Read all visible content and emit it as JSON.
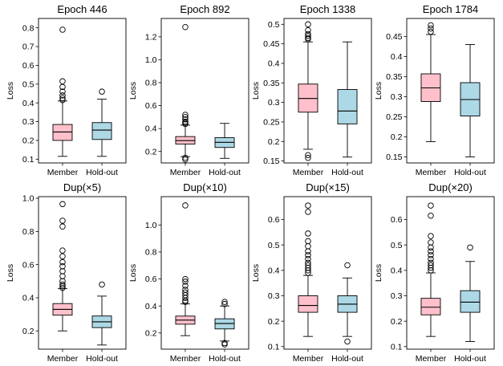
{
  "colors": {
    "member": "#ffc0cb",
    "holdout": "#add8e6",
    "axis": "#000000",
    "outlier": "#000000"
  },
  "chart_data": [
    {
      "type": "box",
      "title": "Epoch 446",
      "ylabel": "Loss",
      "categories": [
        "Member",
        "Hold-out"
      ],
      "ylim": [
        0.08,
        0.85
      ],
      "yticks": [
        0.1,
        0.2,
        0.3,
        0.4,
        0.5,
        0.6,
        0.7,
        0.8
      ],
      "boxes": [
        {
          "name": "Member",
          "whislo": 0.115,
          "q1": 0.2,
          "med": 0.245,
          "q3": 0.285,
          "whishi": 0.41,
          "fliers": [
            0.79,
            0.515,
            0.485,
            0.46,
            0.44,
            0.425,
            0.415
          ]
        },
        {
          "name": "Hold-out",
          "whislo": 0.115,
          "q1": 0.205,
          "med": 0.255,
          "q3": 0.295,
          "whishi": 0.42,
          "fliers": [
            0.46
          ]
        }
      ]
    },
    {
      "type": "box",
      "title": "Epoch 892",
      "ylabel": "Loss",
      "categories": [
        "Member",
        "Hold-out"
      ],
      "ylim": [
        0.1,
        1.36
      ],
      "yticks": [
        0.2,
        0.4,
        0.6,
        0.8,
        1.0,
        1.2
      ],
      "boxes": [
        {
          "name": "Member",
          "whislo": 0.155,
          "q1": 0.265,
          "med": 0.295,
          "q3": 0.33,
          "whishi": 0.43,
          "fliers": [
            1.285,
            0.52,
            0.5,
            0.48,
            0.46,
            0.45,
            0.44,
            0.145,
            0.13
          ]
        },
        {
          "name": "Hold-out",
          "whislo": 0.14,
          "q1": 0.235,
          "med": 0.28,
          "q3": 0.32,
          "whishi": 0.445,
          "fliers": []
        }
      ]
    },
    {
      "type": "box",
      "title": "Epoch 1338",
      "ylabel": "Loss",
      "categories": [
        "Member",
        "Hold-out"
      ],
      "ylim": [
        0.145,
        0.515
      ],
      "yticks": [
        0.15,
        0.2,
        0.25,
        0.3,
        0.35,
        0.4,
        0.45,
        0.5
      ],
      "boxes": [
        {
          "name": "Member",
          "whislo": 0.18,
          "q1": 0.275,
          "med": 0.31,
          "q3": 0.347,
          "whishi": 0.455,
          "fliers": [
            0.5,
            0.485,
            0.475,
            0.47,
            0.465,
            0.462,
            0.165,
            0.158
          ]
        },
        {
          "name": "Hold-out",
          "whislo": 0.16,
          "q1": 0.245,
          "med": 0.278,
          "q3": 0.333,
          "whishi": 0.455,
          "fliers": []
        }
      ]
    },
    {
      "type": "box",
      "title": "Epoch 1784",
      "ylabel": "Loss",
      "categories": [
        "Member",
        "Hold-out"
      ],
      "ylim": [
        0.135,
        0.495
      ],
      "yticks": [
        0.15,
        0.2,
        0.25,
        0.3,
        0.35,
        0.4,
        0.45
      ],
      "boxes": [
        {
          "name": "Member",
          "whislo": 0.188,
          "q1": 0.288,
          "med": 0.322,
          "q3": 0.357,
          "whishi": 0.455,
          "fliers": [
            0.478,
            0.47,
            0.462
          ]
        },
        {
          "name": "Hold-out",
          "whislo": 0.15,
          "q1": 0.252,
          "med": 0.293,
          "q3": 0.335,
          "whishi": 0.43,
          "fliers": []
        }
      ]
    },
    {
      "type": "box",
      "title": "Dup(×5)",
      "ylabel": "Loss",
      "categories": [
        "Member",
        "Hold-out"
      ],
      "ylim": [
        0.09,
        1.01
      ],
      "yticks": [
        0.2,
        0.4,
        0.6,
        0.8,
        1.0
      ],
      "boxes": [
        {
          "name": "Member",
          "whislo": 0.2,
          "q1": 0.295,
          "med": 0.33,
          "q3": 0.365,
          "whishi": 0.455,
          "fliers": [
            0.965,
            0.865,
            0.83,
            0.685,
            0.65,
            0.615,
            0.59,
            0.56,
            0.53,
            0.5,
            0.48,
            0.47,
            0.46
          ]
        },
        {
          "name": "Hold-out",
          "whislo": 0.115,
          "q1": 0.22,
          "med": 0.255,
          "q3": 0.29,
          "whishi": 0.41,
          "fliers": [
            0.48
          ]
        }
      ]
    },
    {
      "type": "box",
      "title": "Dup(×10)",
      "ylabel": "Loss",
      "categories": [
        "Member",
        "Hold-out"
      ],
      "ylim": [
        0.08,
        1.21
      ],
      "yticks": [
        0.2,
        0.4,
        0.6,
        0.8,
        1.0
      ],
      "boxes": [
        {
          "name": "Member",
          "whislo": 0.18,
          "q1": 0.265,
          "med": 0.295,
          "q3": 0.325,
          "whishi": 0.415,
          "fliers": [
            1.145,
            0.6,
            0.58,
            0.55,
            0.52,
            0.5,
            0.48,
            0.46,
            0.44,
            0.43
          ]
        },
        {
          "name": "Hold-out",
          "whislo": 0.14,
          "q1": 0.23,
          "med": 0.27,
          "q3": 0.305,
          "whishi": 0.4,
          "fliers": [
            0.43,
            0.415,
            0.125,
            0.115
          ]
        }
      ]
    },
    {
      "type": "box",
      "title": "Dup(×15)",
      "ylabel": "Loss",
      "categories": [
        "Member",
        "Hold-out"
      ],
      "ylim": [
        0.09,
        0.69
      ],
      "yticks": [
        0.1,
        0.2,
        0.3,
        0.4,
        0.5,
        0.6
      ],
      "boxes": [
        {
          "name": "Member",
          "whislo": 0.14,
          "q1": 0.235,
          "med": 0.262,
          "q3": 0.3,
          "whishi": 0.38,
          "fliers": [
            0.655,
            0.63,
            0.545,
            0.515,
            0.495,
            0.475,
            0.46,
            0.445,
            0.43,
            0.42,
            0.41,
            0.4,
            0.39
          ]
        },
        {
          "name": "Hold-out",
          "whislo": 0.14,
          "q1": 0.235,
          "med": 0.267,
          "q3": 0.3,
          "whishi": 0.37,
          "fliers": [
            0.42,
            0.12
          ]
        }
      ]
    },
    {
      "type": "box",
      "title": "Dup(×20)",
      "ylabel": "Loss",
      "categories": [
        "Member",
        "Hold-out"
      ],
      "ylim": [
        0.09,
        0.69
      ],
      "yticks": [
        0.1,
        0.2,
        0.3,
        0.4,
        0.5,
        0.6
      ],
      "boxes": [
        {
          "name": "Member",
          "whislo": 0.14,
          "q1": 0.225,
          "med": 0.255,
          "q3": 0.29,
          "whishi": 0.39,
          "fliers": [
            0.655,
            0.615,
            0.535,
            0.51,
            0.49,
            0.475,
            0.46,
            0.445,
            0.43,
            0.42,
            0.41,
            0.4
          ]
        },
        {
          "name": "Hold-out",
          "whislo": 0.12,
          "q1": 0.235,
          "med": 0.275,
          "q3": 0.32,
          "whishi": 0.435,
          "fliers": [
            0.49
          ]
        }
      ]
    }
  ]
}
